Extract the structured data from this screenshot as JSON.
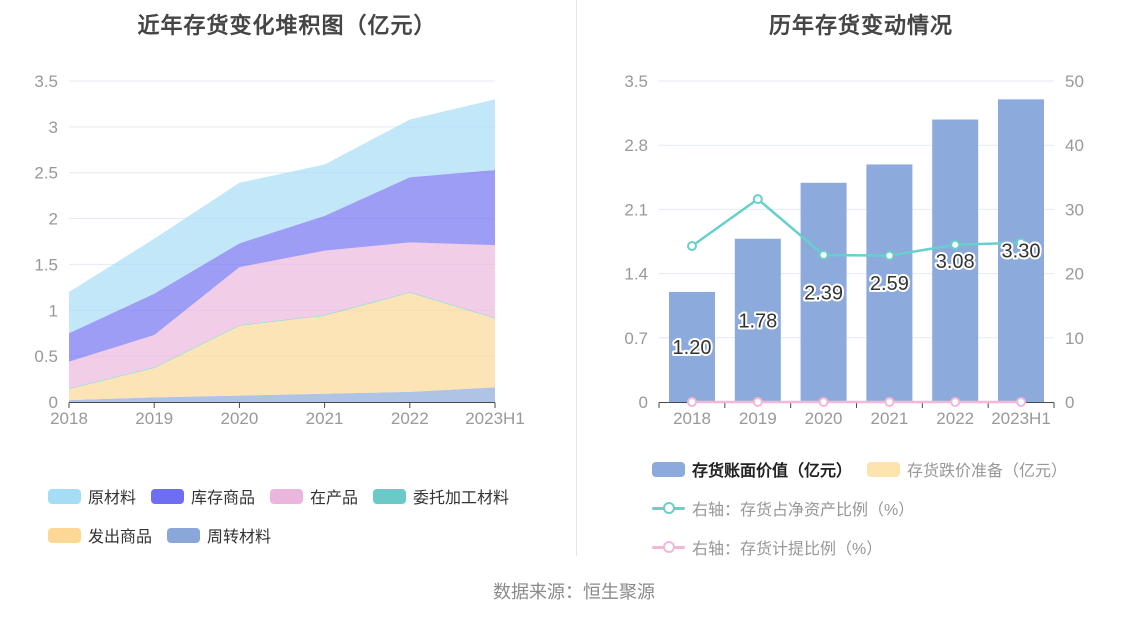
{
  "page": {
    "source_note": "数据来源：恒生聚源"
  },
  "chart_data": [
    {
      "type": "area",
      "stacked": true,
      "title": "近年存货变化堆积图（亿元）",
      "categories": [
        "2018",
        "2019",
        "2020",
        "2021",
        "2022",
        "2023H1"
      ],
      "series": [
        {
          "name": "周转材料",
          "color": "#89a7d8",
          "values": [
            0.02,
            0.05,
            0.07,
            0.09,
            0.11,
            0.16
          ]
        },
        {
          "name": "发出商品",
          "color": "#fcd795",
          "values": [
            0.12,
            0.32,
            0.76,
            0.85,
            1.08,
            0.75
          ]
        },
        {
          "name": "委托加工材料",
          "color": "#6bcac8",
          "values": [
            0.01,
            0.01,
            0.01,
            0.01,
            0.01,
            0.01
          ]
        },
        {
          "name": "在产品",
          "color": "#eab6dd",
          "values": [
            0.29,
            0.35,
            0.63,
            0.7,
            0.54,
            0.79
          ]
        },
        {
          "name": "库存商品",
          "color": "#6e6ef2",
          "values": [
            0.31,
            0.45,
            0.26,
            0.38,
            0.71,
            0.82
          ]
        },
        {
          "name": "原材料",
          "color": "#a5dcf6",
          "values": [
            0.45,
            0.6,
            0.66,
            0.56,
            0.63,
            0.77
          ]
        }
      ],
      "totals": [
        1.2,
        1.78,
        2.39,
        2.59,
        3.08,
        3.3
      ],
      "legend_rows": [
        [
          "原材料",
          "库存商品",
          "在产品",
          "委托加工材料"
        ],
        [
          "发出商品",
          "周转材料"
        ]
      ],
      "ylim": [
        0,
        3.5
      ],
      "y_ticks": [
        0,
        0.5,
        1,
        1.5,
        2,
        2.5,
        3,
        3.5
      ],
      "grid": true,
      "legend_position": "bottom-left"
    },
    {
      "type": "bar",
      "title": "历年存货变动情况",
      "categories": [
        "2018",
        "2019",
        "2020",
        "2021",
        "2022",
        "2023H1"
      ],
      "bar_series": [
        {
          "name": "存货账面价值（亿元）",
          "color": "#8caadb",
          "axis": "left",
          "values": [
            1.2,
            1.78,
            2.39,
            2.59,
            3.08,
            3.3
          ],
          "labels": [
            "1.20",
            "1.78",
            "2.39",
            "2.59",
            "3.08",
            "3.30"
          ]
        },
        {
          "name": "存货跌价准备（亿元）",
          "color": "#fde3ae",
          "axis": "left",
          "values": [
            0,
            0,
            0,
            0,
            0,
            0
          ],
          "labels": []
        }
      ],
      "line_series": [
        {
          "name": "右轴：存货占净资产比例（%）",
          "color": "#68d0ca",
          "axis": "right",
          "values": [
            24.3,
            31.6,
            22.9,
            22.8,
            24.5,
            24.8
          ]
        },
        {
          "name": "右轴：存货计提比例（%）",
          "color": "#f3b7d8",
          "axis": "right",
          "values": [
            0,
            0,
            0,
            0,
            0,
            0
          ]
        }
      ],
      "legend": [
        {
          "type": "bar",
          "label": "存货账面价值（亿元）",
          "color": "#8caadb",
          "emphasis": true
        },
        {
          "type": "bar",
          "label": "存货跌价准备（亿元）",
          "color": "#fde3ae",
          "emphasis": false
        },
        {
          "type": "line",
          "label": "右轴：存货占净资产比例（%）",
          "color": "#68d0ca",
          "emphasis": false
        },
        {
          "type": "line",
          "label": "右轴：存货计提比例（%）",
          "color": "#f3b7d8",
          "emphasis": false
        }
      ],
      "legend_row_indices": [
        [
          0,
          1
        ],
        [
          2
        ],
        [
          3
        ]
      ],
      "left_ylim": [
        0,
        3.5
      ],
      "left_y_ticks": [
        0,
        0.7,
        1.4,
        2.1,
        2.8,
        3.5
      ],
      "right_ylim": [
        0,
        50
      ],
      "right_y_ticks": [
        0,
        10,
        20,
        30,
        40,
        50
      ],
      "grid": true,
      "legend_position": "bottom-left"
    }
  ]
}
